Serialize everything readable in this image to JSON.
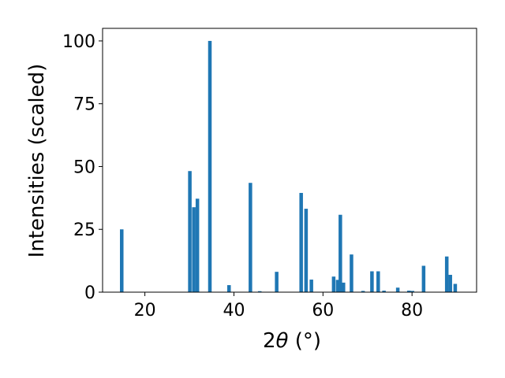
{
  "chart_data": {
    "type": "bar",
    "title": "",
    "xlabel_main": "2",
    "xlabel_symbol": "θ",
    "xlabel_unit": " (°)",
    "ylabel": "Intensities (scaled)",
    "xlim": [
      10.5,
      94.5
    ],
    "ylim": [
      0,
      105
    ],
    "xticks": [
      20,
      40,
      60,
      80
    ],
    "yticks": [
      0,
      25,
      50,
      75,
      100
    ],
    "bar_color": "#1f77b4",
    "bar_width": 0.8,
    "points": [
      {
        "x": 14.8,
        "y": 25
      },
      {
        "x": 30.1,
        "y": 48.2
      },
      {
        "x": 31.0,
        "y": 33.8
      },
      {
        "x": 31.8,
        "y": 37.2
      },
      {
        "x": 34.6,
        "y": 100
      },
      {
        "x": 38.9,
        "y": 2.8
      },
      {
        "x": 43.7,
        "y": 43.5
      },
      {
        "x": 45.8,
        "y": 0.4
      },
      {
        "x": 49.6,
        "y": 8.1
      },
      {
        "x": 55.1,
        "y": 39.5
      },
      {
        "x": 56.2,
        "y": 33.2
      },
      {
        "x": 57.4,
        "y": 5.0
      },
      {
        "x": 62.4,
        "y": 6.2
      },
      {
        "x": 63.3,
        "y": 4.9
      },
      {
        "x": 63.9,
        "y": 30.8
      },
      {
        "x": 64.6,
        "y": 3.8
      },
      {
        "x": 66.4,
        "y": 15.0
      },
      {
        "x": 69.0,
        "y": 0.5
      },
      {
        "x": 71.0,
        "y": 8.3
      },
      {
        "x": 72.4,
        "y": 8.3
      },
      {
        "x": 73.7,
        "y": 0.6
      },
      {
        "x": 76.8,
        "y": 1.8
      },
      {
        "x": 79.3,
        "y": 0.6
      },
      {
        "x": 80.1,
        "y": 0.5
      },
      {
        "x": 82.6,
        "y": 10.5
      },
      {
        "x": 87.8,
        "y": 14.2
      },
      {
        "x": 88.6,
        "y": 6.9
      },
      {
        "x": 89.7,
        "y": 3.3
      }
    ]
  }
}
